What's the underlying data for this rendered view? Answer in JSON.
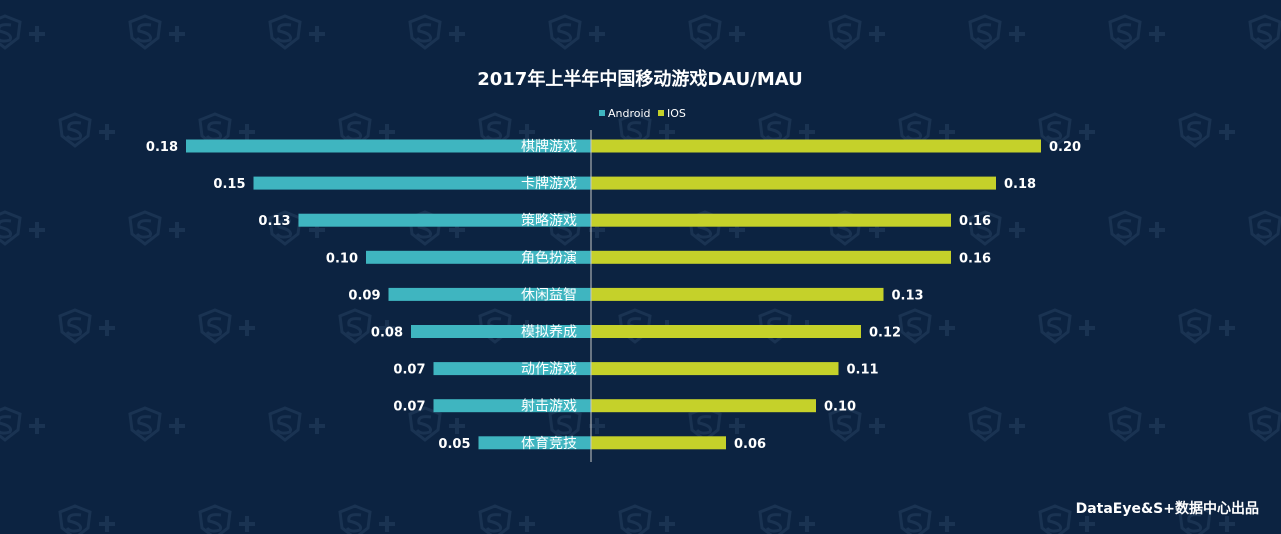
{
  "chart_data": {
    "type": "bar",
    "orientation": "horizontal-butterfly",
    "title": "2017年上半年中国移动游戏DAU/MAU",
    "categories": [
      "棋牌游戏",
      "卡牌游戏",
      "策略游戏",
      "角色扮演",
      "休闲益智",
      "模拟养成",
      "动作游戏",
      "射击游戏",
      "体育竞技"
    ],
    "series": [
      {
        "name": "Android",
        "color": "#3fb5c0",
        "values": [
          0.18,
          0.15,
          0.13,
          0.1,
          0.09,
          0.08,
          0.07,
          0.07,
          0.05
        ],
        "labels": [
          "0.18",
          "0.15",
          "0.13",
          "0.10",
          "0.09",
          "0.08",
          "0.07",
          "0.07",
          "0.05"
        ]
      },
      {
        "name": "IOS",
        "color": "#c5d12a",
        "values": [
          0.2,
          0.18,
          0.16,
          0.16,
          0.13,
          0.12,
          0.11,
          0.1,
          0.06
        ],
        "labels": [
          "0.20",
          "0.18",
          "0.16",
          "0.16",
          "0.13",
          "0.12",
          "0.11",
          "0.10",
          "0.06"
        ]
      }
    ],
    "legend_position": "top-center"
  },
  "footer": {
    "text": "DataEye&S+数据中心出品"
  },
  "colors": {
    "background": "#0c2341",
    "watermark": "#1a3352",
    "axis": "#c8c8c8"
  }
}
